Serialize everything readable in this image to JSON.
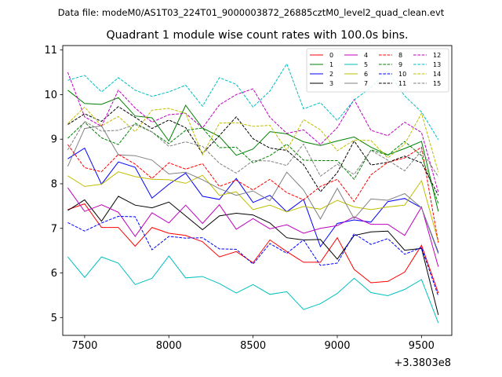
{
  "suptitle": "Data file: modeM0/AS1T03_224T01_9000003872_26885cztM0_level2_quad_clean.evt",
  "chart_data": {
    "type": "line",
    "title": "Quadrant 1 module wise count rates with 100.0s bins.",
    "xlabel": "",
    "ylabel": "",
    "x_offset_label": "+3.3803e8",
    "xlim": [
      7370,
      9680
    ],
    "ylim": [
      4.6,
      11.1
    ],
    "xticks": [
      7500,
      8000,
      8500,
      9000,
      9500
    ],
    "xtick_labels": [
      "7500",
      "8000",
      "8500",
      "9000",
      "9500"
    ],
    "yticks": [
      5,
      6,
      7,
      8,
      9,
      10,
      11
    ],
    "ytick_labels": [
      "5",
      "6",
      "7",
      "8",
      "9",
      "10",
      "11"
    ],
    "grid": false,
    "legend_position": "top-right",
    "legend_columns": 4,
    "x": [
      7400,
      7500,
      7600,
      7700,
      7800,
      7900,
      8000,
      8100,
      8200,
      8300,
      8400,
      8500,
      8600,
      8700,
      8800,
      8900,
      9000,
      9100,
      9200,
      9300,
      9400,
      9500,
      9600
    ],
    "series": [
      {
        "name": "0",
        "color": "#ff0000",
        "dash": "solid",
        "values": [
          7.42,
          7.55,
          7.02,
          7.02,
          6.6,
          7.02,
          6.89,
          6.84,
          6.7,
          6.36,
          6.48,
          6.23,
          6.74,
          6.48,
          6.24,
          6.24,
          6.79,
          6.08,
          5.78,
          5.81,
          6.02,
          6.62,
          5.55
        ]
      },
      {
        "name": "1",
        "color": "#008000",
        "dash": "solid",
        "values": [
          10.1,
          9.8,
          9.78,
          9.93,
          9.52,
          9.48,
          8.96,
          9.76,
          9.25,
          9.06,
          8.64,
          8.78,
          9.17,
          9.12,
          8.94,
          8.86,
          8.96,
          9.05,
          8.82,
          8.65,
          8.79,
          8.95,
          7.38
        ]
      },
      {
        "name": "2",
        "color": "#0000ff",
        "dash": "solid",
        "values": [
          8.56,
          8.8,
          7.99,
          8.49,
          8.37,
          7.68,
          7.99,
          8.24,
          7.72,
          7.65,
          8.12,
          7.58,
          7.74,
          7.37,
          7.65,
          6.59,
          7.11,
          7.19,
          7.14,
          7.6,
          7.67,
          7.46,
          6.46
        ]
      },
      {
        "name": "3",
        "color": "#000000",
        "dash": "solid",
        "values": [
          7.4,
          7.64,
          7.16,
          7.72,
          7.52,
          7.46,
          7.59,
          7.28,
          6.97,
          7.28,
          7.34,
          7.3,
          7.12,
          6.79,
          6.74,
          6.75,
          6.31,
          6.84,
          6.92,
          6.94,
          6.51,
          6.55,
          5.06
        ]
      },
      {
        "name": "4",
        "color": "#bf00bf",
        "dash": "solid",
        "values": [
          7.91,
          7.38,
          7.53,
          7.36,
          6.82,
          7.35,
          7.12,
          7.52,
          7.11,
          7.53,
          6.98,
          7.22,
          6.99,
          7.08,
          6.89,
          7.0,
          7.06,
          7.26,
          7.09,
          7.09,
          6.84,
          7.48,
          6.14
        ]
      },
      {
        "name": "5",
        "color": "#00bfbf",
        "dash": "solid",
        "values": [
          6.36,
          5.9,
          6.36,
          6.22,
          5.74,
          5.88,
          6.38,
          5.89,
          5.92,
          5.76,
          5.55,
          5.74,
          5.52,
          5.58,
          5.18,
          5.31,
          5.54,
          5.88,
          5.56,
          5.49,
          5.63,
          5.85,
          4.88
        ]
      },
      {
        "name": "6",
        "color": "#bfbf00",
        "dash": "solid",
        "values": [
          8.18,
          7.94,
          7.99,
          8.27,
          8.16,
          8.1,
          8.09,
          8.01,
          8.19,
          7.74,
          7.82,
          7.42,
          7.52,
          7.37,
          7.49,
          7.43,
          7.63,
          7.48,
          7.42,
          7.48,
          7.52,
          8.07,
          6.7
        ]
      },
      {
        "name": "7",
        "color": "#808080",
        "dash": "solid",
        "values": [
          8.39,
          9.24,
          9.3,
          8.65,
          8.63,
          8.53,
          8.22,
          8.26,
          8.09,
          7.89,
          7.74,
          7.84,
          7.62,
          8.26,
          7.86,
          7.21,
          7.9,
          7.22,
          7.66,
          7.63,
          7.78,
          7.46,
          6.43
        ]
      },
      {
        "name": "8",
        "color": "#ff0000",
        "dash": "dashed",
        "values": [
          8.88,
          8.36,
          8.27,
          8.66,
          8.44,
          8.12,
          8.47,
          8.33,
          8.45,
          7.94,
          8.08,
          7.86,
          8.1,
          7.8,
          7.64,
          7.94,
          8.1,
          7.6,
          8.2,
          8.48,
          8.58,
          8.82,
          6.68
        ]
      },
      {
        "name": "9",
        "color": "#008000",
        "dash": "dashed",
        "values": [
          9.02,
          9.38,
          9.03,
          8.88,
          9.36,
          9.16,
          8.9,
          9.2,
          9.25,
          8.81,
          8.82,
          8.47,
          8.63,
          8.89,
          8.53,
          8.52,
          8.52,
          8.1,
          8.76,
          8.64,
          8.95,
          8.63,
          7.56
        ]
      },
      {
        "name": "10",
        "color": "#0000ff",
        "dash": "dashed",
        "values": [
          7.13,
          6.94,
          7.12,
          7.27,
          7.26,
          6.52,
          6.82,
          6.78,
          6.79,
          6.54,
          6.53,
          6.2,
          6.66,
          6.44,
          6.74,
          6.17,
          6.22,
          6.88,
          6.64,
          6.77,
          6.42,
          6.57,
          5.48
        ]
      },
      {
        "name": "11",
        "color": "#000000",
        "dash": "dashed",
        "values": [
          9.33,
          9.57,
          9.4,
          9.73,
          9.49,
          9.24,
          9.43,
          9.26,
          8.68,
          9.08,
          9.5,
          9.01,
          8.8,
          8.75,
          8.43,
          7.82,
          8.25,
          8.96,
          8.42,
          8.48,
          8.62,
          8.47,
          7.74
        ]
      },
      {
        "name": "12",
        "color": "#bf00bf",
        "dash": "dashed",
        "values": [
          10.5,
          9.5,
          9.29,
          10.1,
          9.7,
          9.38,
          9.55,
          9.58,
          9.25,
          9.77,
          10.0,
          10.13,
          9.49,
          9.13,
          9.21,
          8.88,
          9.26,
          9.89,
          9.2,
          9.08,
          9.38,
          9.15,
          7.81
        ]
      },
      {
        "name": "13",
        "color": "#00bfbf",
        "dash": "dashed",
        "values": [
          10.32,
          10.43,
          10.06,
          10.38,
          10.1,
          9.96,
          10.06,
          10.21,
          9.74,
          10.38,
          10.23,
          9.72,
          10.08,
          10.69,
          9.68,
          9.82,
          9.42,
          9.88,
          10.16,
          10.53,
          9.97,
          9.61,
          8.99
        ]
      },
      {
        "name": "14",
        "color": "#bfbf00",
        "dash": "dashed",
        "values": [
          9.35,
          9.72,
          9.3,
          9.51,
          9.17,
          9.65,
          9.69,
          9.58,
          8.65,
          9.36,
          9.37,
          9.29,
          9.31,
          8.75,
          9.44,
          9.21,
          8.74,
          8.98,
          8.97,
          8.58,
          8.89,
          9.58,
          8.26
        ]
      },
      {
        "name": "15",
        "color": "#808080",
        "dash": "dashed",
        "values": [
          8.76,
          9.4,
          9.18,
          9.2,
          9.33,
          9.16,
          8.84,
          8.94,
          8.84,
          8.46,
          8.24,
          8.52,
          8.51,
          8.41,
          8.89,
          8.17,
          8.44,
          8.21,
          8.75,
          8.53,
          8.29,
          8.74,
          8.16
        ]
      }
    ]
  }
}
